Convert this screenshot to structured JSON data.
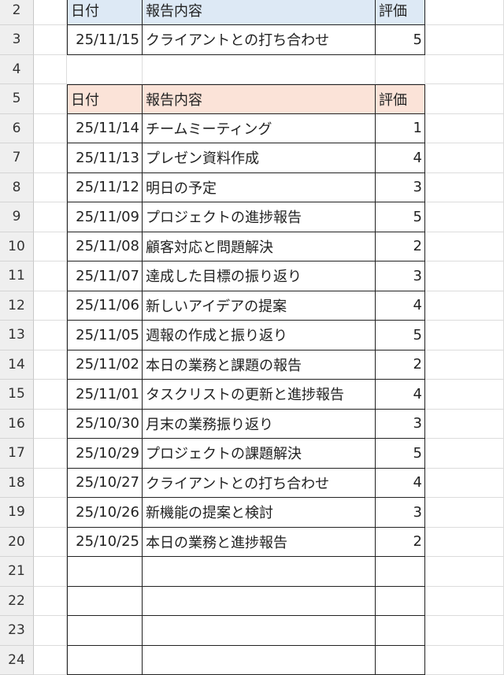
{
  "sheet": {
    "header_colors": {
      "table1": "#dde9f5",
      "table2": "#fbe3d8"
    },
    "table1": {
      "row_start": 2,
      "headers": [
        "日付",
        "報告内容",
        "評価"
      ],
      "rows": [
        {
          "date": "25/11/15",
          "content": "クライアントとの打ち合わせ",
          "rating": "5"
        }
      ]
    },
    "blank_rows_between": [
      4
    ],
    "table2": {
      "row_start": 5,
      "headers": [
        "日付",
        "報告内容",
        "評価"
      ],
      "rows": [
        {
          "date": "25/11/14",
          "content": "チームミーティング",
          "rating": "1"
        },
        {
          "date": "25/11/13",
          "content": "プレゼン資料作成",
          "rating": "4"
        },
        {
          "date": "25/11/12",
          "content": "明日の予定",
          "rating": "3"
        },
        {
          "date": "25/11/09",
          "content": "プロジェクトの進捗報告",
          "rating": "5"
        },
        {
          "date": "25/11/08",
          "content": "顧客対応と問題解決",
          "rating": "2"
        },
        {
          "date": "25/11/07",
          "content": "達成した目標の振り返り",
          "rating": "3"
        },
        {
          "date": "25/11/06",
          "content": "新しいアイデアの提案",
          "rating": "4"
        },
        {
          "date": "25/11/05",
          "content": "週報の作成と振り返り",
          "rating": "5"
        },
        {
          "date": "25/11/02",
          "content": "本日の業務と課題の報告",
          "rating": "2"
        },
        {
          "date": "25/11/01",
          "content": "タスクリストの更新と進捗報告",
          "rating": "4"
        },
        {
          "date": "25/10/30",
          "content": "月末の業務振り返り",
          "rating": "3"
        },
        {
          "date": "25/10/29",
          "content": "プロジェクトの課題解決",
          "rating": "5"
        },
        {
          "date": "25/10/27",
          "content": "クライアントとの打ち合わせ",
          "rating": "4"
        },
        {
          "date": "25/10/26",
          "content": "新機能の提案と検討",
          "rating": "3"
        },
        {
          "date": "25/10/25",
          "content": "本日の業務と進捗報告",
          "rating": "2"
        }
      ],
      "empty_rows": 4
    }
  }
}
